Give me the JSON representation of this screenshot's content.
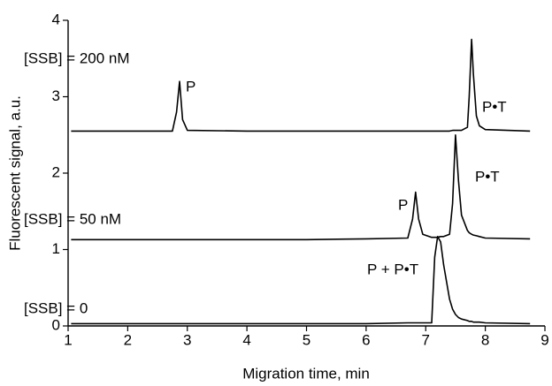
{
  "chart_data": {
    "type": "line",
    "xlabel": "Migration time, min",
    "ylabel": "Fluorescent signal, a.u.",
    "xlim": [
      1,
      9
    ],
    "xticks": [
      1,
      2,
      3,
      4,
      5,
      6,
      7,
      8,
      9
    ],
    "ylim": [
      0,
      4
    ],
    "yticks": [
      0,
      1,
      2,
      3,
      4
    ],
    "x": [
      1.05,
      2.0,
      2.75,
      2.82,
      2.87,
      2.92,
      3.0,
      4.0,
      5.0,
      6.0,
      6.7,
      6.78,
      6.83,
      6.88,
      6.95,
      7.1,
      7.15,
      7.2,
      7.25,
      7.3,
      7.4,
      7.45,
      7.5,
      7.55,
      7.6,
      7.7,
      7.73,
      7.77,
      7.8,
      7.85,
      7.9,
      8.0,
      8.75
    ],
    "series": [
      {
        "name": "[SSB] = 200 nM",
        "color": "#000000",
        "values": [
          2.55,
          2.55,
          2.55,
          2.8,
          3.2,
          2.7,
          2.56,
          2.55,
          2.55,
          2.55,
          2.55,
          2.55,
          2.55,
          2.55,
          2.55,
          2.55,
          2.55,
          2.55,
          2.55,
          2.55,
          2.55,
          2.56,
          2.56,
          2.56,
          2.56,
          2.6,
          3.0,
          3.75,
          3.3,
          2.75,
          2.62,
          2.57,
          2.55
        ]
      },
      {
        "name": "[SSB] = 50 nM",
        "color": "#000000",
        "values": [
          1.13,
          1.13,
          1.13,
          1.13,
          1.13,
          1.13,
          1.13,
          1.13,
          1.13,
          1.14,
          1.15,
          1.4,
          1.75,
          1.4,
          1.2,
          1.16,
          1.16,
          1.16,
          1.17,
          1.17,
          1.2,
          1.6,
          2.5,
          1.9,
          1.45,
          1.25,
          1.22,
          1.2,
          1.19,
          1.18,
          1.17,
          1.15,
          1.14
        ]
      },
      {
        "name": "[SSB] = 0",
        "color": "#000000",
        "values": [
          0.03,
          0.03,
          0.03,
          0.03,
          0.03,
          0.03,
          0.03,
          0.03,
          0.03,
          0.03,
          0.04,
          0.04,
          0.04,
          0.04,
          0.04,
          0.04,
          0.9,
          1.17,
          1.1,
          0.8,
          0.35,
          0.22,
          0.15,
          0.11,
          0.09,
          0.07,
          0.06,
          0.06,
          0.05,
          0.05,
          0.05,
          0.04,
          0.03
        ]
      }
    ],
    "annotations": [
      "P",
      "P•T",
      "P",
      "P•T",
      "P + P•T"
    ]
  }
}
